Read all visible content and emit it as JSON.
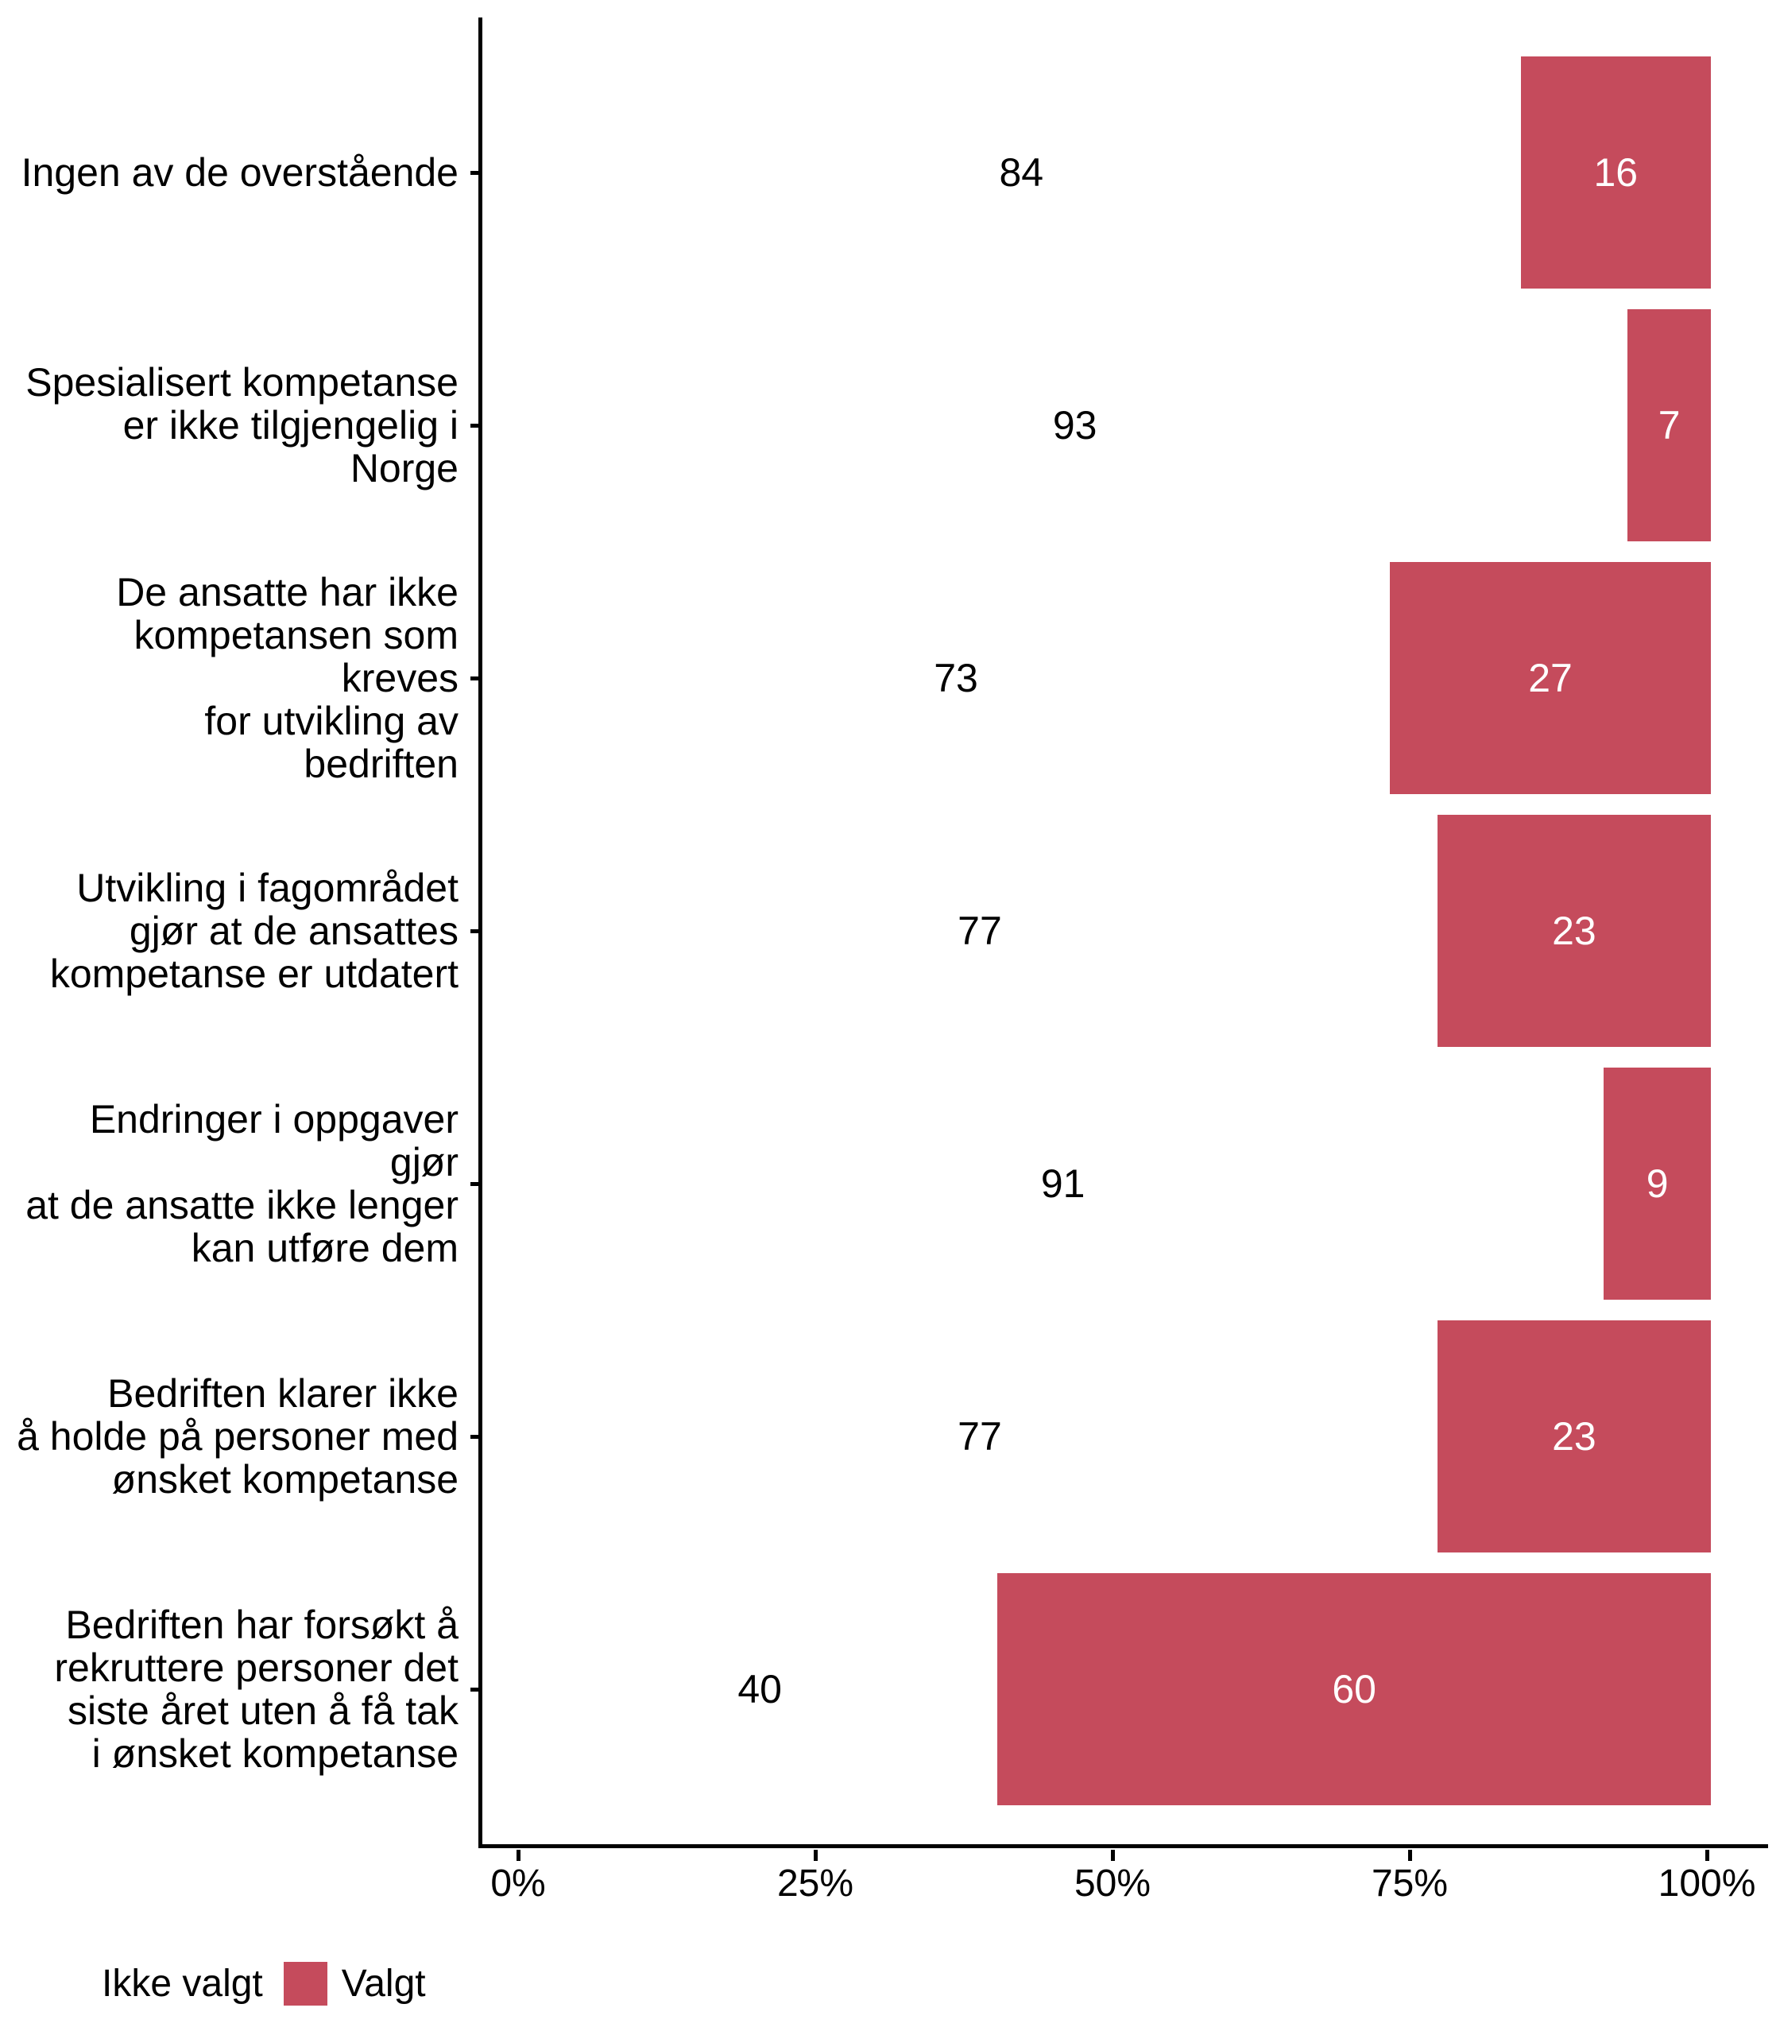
{
  "chart_data": {
    "type": "bar",
    "orientation": "horizontal",
    "stacked": true,
    "units": "percent",
    "title": "",
    "xlabel": "",
    "ylabel": "",
    "grid": false,
    "xlim": [
      0,
      100
    ],
    "x_ticks": [
      "0%",
      "25%",
      "50%",
      "75%",
      "100%"
    ],
    "x_tick_values": [
      0,
      25,
      50,
      75,
      100
    ],
    "categories": [
      "Ingen av de overstående",
      "Spesialisert kompetanse\ner ikke tilgjengelig i\nNorge",
      "De ansatte har ikke\nkompetansen som kreves\nfor utvikling av\nbedriften",
      "Utvikling i fagområdet\ngjør at de ansattes\nkompetanse er utdatert",
      "Endringer i oppgaver gjør\nat de ansatte ikke lenger\nkan utføre dem",
      "Bedriften klarer ikke\nå holde på personer med\nønsket kompetanse",
      "Bedriften har forsøkt å\nrekruttere personer det\nsiste året uten å få tak\ni ønsket kompetanse"
    ],
    "series": [
      {
        "name": "Ikke valgt",
        "color": "#FFFFFF",
        "label_color": "#000000",
        "values": [
          84,
          93,
          73,
          77,
          91,
          77,
          40
        ]
      },
      {
        "name": "Valgt",
        "color": "#C54B5C",
        "label_color": "#FFFFFF",
        "values": [
          16,
          7,
          27,
          23,
          9,
          23,
          60
        ]
      }
    ],
    "legend": {
      "position": "bottom-left",
      "items": [
        {
          "label": "Ikke valgt",
          "color": "#FFFFFF"
        },
        {
          "label": "Valgt",
          "color": "#C54B5C"
        }
      ]
    }
  },
  "colors": {
    "accent": "#C54B5C",
    "axis": "#000000",
    "background": "#FFFFFF",
    "text": "#000000"
  }
}
